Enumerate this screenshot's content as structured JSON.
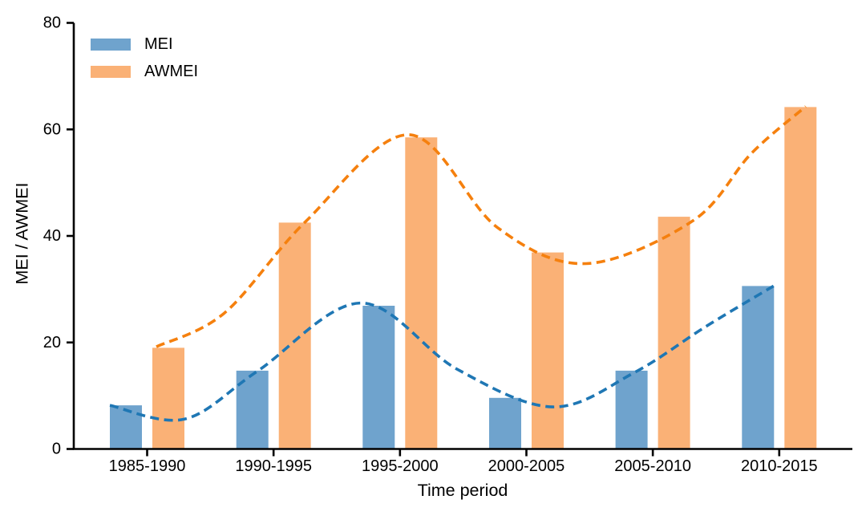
{
  "chart_data": {
    "type": "bar",
    "title": "",
    "xlabel": "Time period",
    "ylabel": "MEI / AWMEI",
    "categories": [
      "1985-1990",
      "1990-1995",
      "1995-2000",
      "2000-2005",
      "2005-2010",
      "2010-2015"
    ],
    "series": [
      {
        "name": "MEI",
        "values": [
          8.2,
          14.7,
          26.9,
          9.6,
          14.7,
          30.6
        ],
        "bar_color": "#6FA3CD",
        "trend_color": "#1F77B4",
        "trend_style": "dashed"
      },
      {
        "name": "AWMEI",
        "values": [
          19.0,
          42.5,
          58.5,
          36.9,
          43.6,
          64.2
        ],
        "bar_color": "#FAB176",
        "trend_color": "#F5800E",
        "trend_style": "dashed"
      }
    ],
    "trend_lines": [
      {
        "series": "MEI",
        "points": [
          [
            -0.295,
            8.2
          ],
          [
            0.295,
            5.6
          ],
          [
            0.878,
            14.7
          ],
          [
            1.69,
            27.4
          ],
          [
            2.45,
            15.0
          ],
          [
            3.21,
            7.9
          ],
          [
            3.85,
            14.3
          ],
          [
            4.42,
            23.0
          ],
          [
            4.955,
            30.6
          ]
        ]
      },
      {
        "series": "AWMEI",
        "points": [
          [
            0.073,
            19.2
          ],
          [
            0.61,
            25.5
          ],
          [
            1.25,
            42.6
          ],
          [
            2.07,
            59.0
          ],
          [
            2.77,
            41.6
          ],
          [
            3.47,
            34.8
          ],
          [
            4.32,
            42.9
          ],
          [
            4.78,
            55.5
          ],
          [
            5.21,
            64.3
          ]
        ]
      }
    ],
    "ylim": [
      0,
      80
    ],
    "yticks": [
      0,
      20,
      40,
      60,
      80
    ],
    "legend_position": "upper left",
    "grid": false,
    "axis_color": "#000000",
    "text_color": "#000000"
  }
}
